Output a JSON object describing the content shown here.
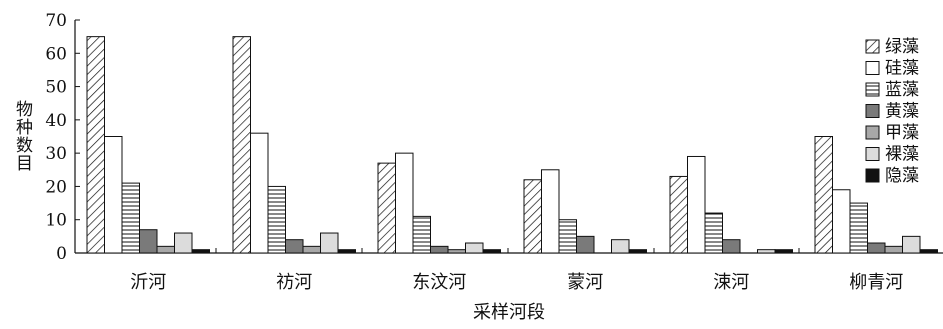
{
  "chart_data": {
    "type": "bar",
    "title": "",
    "xlabel": "采样河段",
    "ylabel": "物种数目",
    "ylim": [
      0,
      70
    ],
    "yticks": [
      0,
      10,
      20,
      30,
      40,
      50,
      60,
      70
    ],
    "categories": [
      "沂河",
      "祊河",
      "东汶河",
      "蒙河",
      "涑河",
      "柳青河"
    ],
    "legend_position": "right",
    "grid": false,
    "series": [
      {
        "name": "绿藻",
        "pattern": "diagonal-hatch",
        "values": [
          65,
          65,
          27,
          22,
          23,
          35
        ]
      },
      {
        "name": "硅藻",
        "pattern": "white",
        "values": [
          35,
          36,
          30,
          25,
          29,
          19
        ]
      },
      {
        "name": "蓝藻",
        "pattern": "horizontal-lines",
        "values": [
          21,
          20,
          11,
          10,
          12,
          15
        ]
      },
      {
        "name": "黄藻",
        "pattern": "dark-gray",
        "values": [
          7,
          4,
          2,
          5,
          4,
          3
        ]
      },
      {
        "name": "甲藻",
        "pattern": "mid-gray",
        "values": [
          2,
          2,
          1,
          0,
          0,
          2
        ]
      },
      {
        "name": "裸藻",
        "pattern": "light-gray",
        "values": [
          6,
          6,
          3,
          4,
          1,
          5
        ]
      },
      {
        "name": "隐藻",
        "pattern": "black",
        "values": [
          1,
          1,
          1,
          1,
          1,
          1
        ]
      }
    ]
  },
  "colors": {
    "dark-gray": "#7a7a7a",
    "mid-gray": "#a8a8a8",
    "light-gray": "#dcdcdc",
    "black": "#111111",
    "white": "#ffffff",
    "stroke": "#111111"
  }
}
